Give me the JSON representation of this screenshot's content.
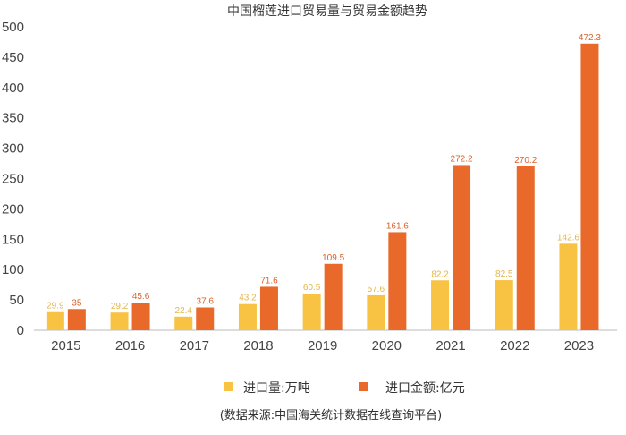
{
  "chart_data": {
    "type": "bar",
    "title": "中国榴莲进口贸易量与贸易金额趋势",
    "categories": [
      "2015",
      "2016",
      "2017",
      "2018",
      "2019",
      "2020",
      "2021",
      "2022",
      "2023"
    ],
    "series": [
      {
        "name": "进口量:万吨",
        "color": "#F8C242",
        "values": [
          29.9,
          29.2,
          22.4,
          43.2,
          60.5,
          57.6,
          82.2,
          82.5,
          142.6
        ],
        "labels": [
          "29.9",
          "29.2",
          "22.4",
          "43.2",
          "60.5",
          "57.6",
          "82.2",
          "82.5",
          "142.6"
        ]
      },
      {
        "name": "进口金额:亿元",
        "color": "#E9692B",
        "values": [
          35,
          45.6,
          37.6,
          71.6,
          109.5,
          161.6,
          272.2,
          270.2,
          472.3
        ],
        "labels": [
          "35",
          "45.6",
          "37.6",
          "71.6",
          "109.5",
          "161.6",
          "272.2",
          "270.2",
          "472.3"
        ]
      }
    ],
    "ylim": [
      0,
      500
    ],
    "yticks": [
      "0",
      "50",
      "100",
      "150",
      "200",
      "250",
      "300",
      "350",
      "400",
      "450",
      "500"
    ],
    "xlabel": "",
    "ylabel": "",
    "grid": false,
    "legend_position": "bottom",
    "source_note": "(数据来源:中国海关统计数据在线查询平台)"
  }
}
